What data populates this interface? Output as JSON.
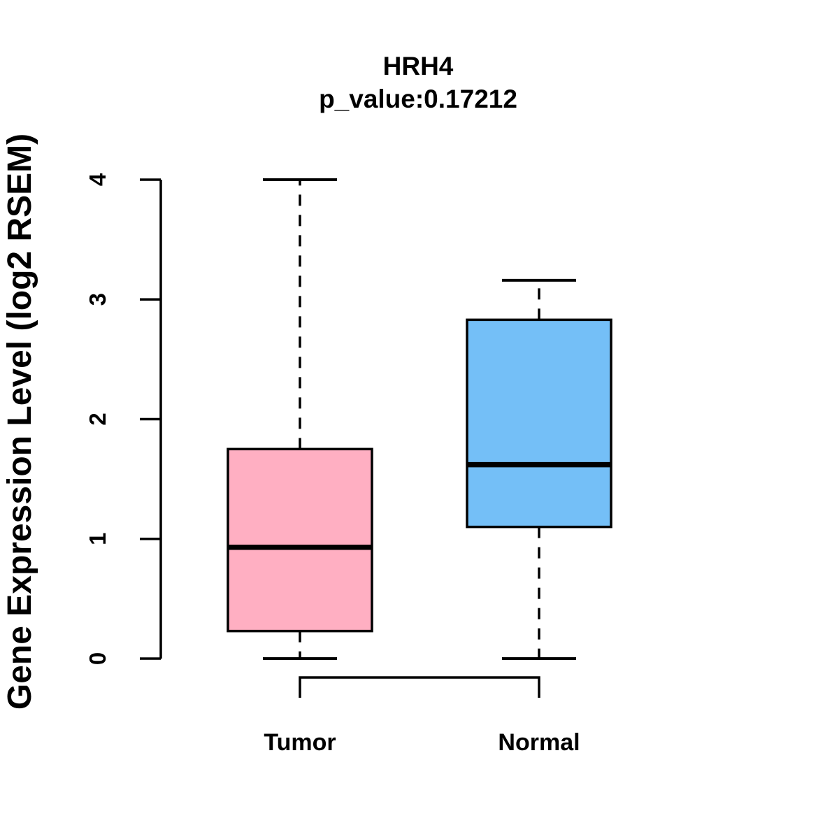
{
  "chart_data": {
    "type": "boxplot",
    "title": "HRH4",
    "subtitle": "p_value:0.17212",
    "p_value": 0.17212,
    "gene": "HRH4",
    "xlabel": "",
    "ylabel": "Gene Expression Level (log2 RSEM)",
    "categories": [
      "Tumor",
      "Normal"
    ],
    "ylim": [
      0,
      4
    ],
    "yticks": [
      0,
      1,
      2,
      3,
      4
    ],
    "grid": false,
    "legend": "none",
    "series": [
      {
        "name": "Tumor",
        "color": "#FFAFC2",
        "min": 0,
        "q1": 0.23,
        "median": 0.93,
        "q3": 1.75,
        "max": 4.0,
        "outliers": []
      },
      {
        "name": "Normal",
        "color": "#74BFF7",
        "min": 0,
        "q1": 1.1,
        "median": 1.62,
        "q3": 2.83,
        "max": 3.16,
        "outliers": []
      }
    ],
    "comparison_bracket": {
      "between": [
        "Tumor",
        "Normal"
      ]
    }
  },
  "colors": {
    "tumor_box": "#FFAFC2",
    "normal_box": "#74BFF7",
    "stroke": "#000000",
    "background": "#FFFFFF"
  }
}
